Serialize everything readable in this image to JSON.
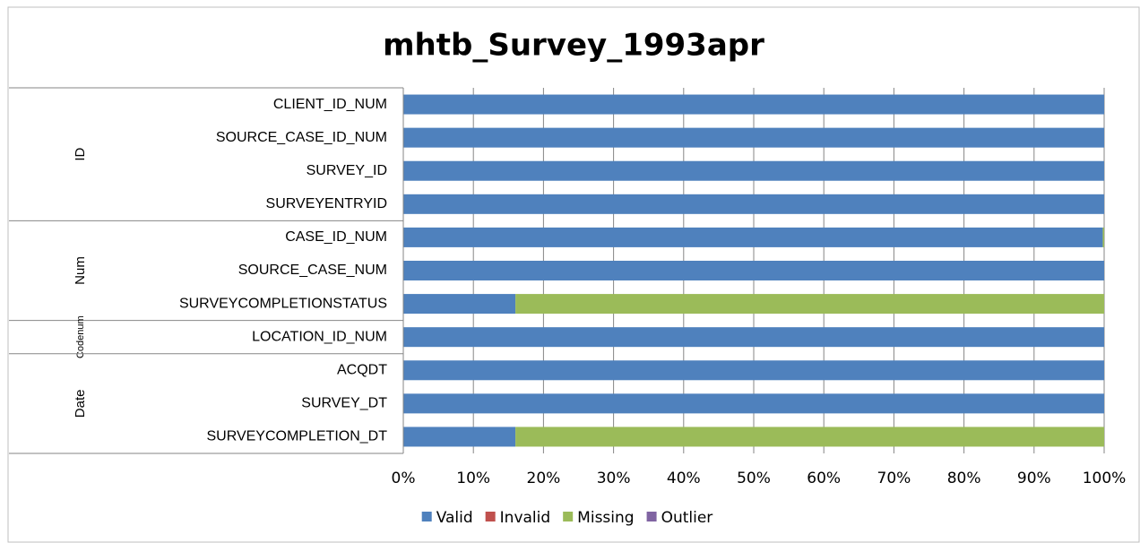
{
  "chart_data": {
    "type": "stacked_bar_horizontal",
    "title": "mhtb_Survey_1993apr",
    "groups": [
      {
        "label": "ID",
        "categories": [
          "CLIENT_ID_NUM",
          "SOURCE_CASE_ID_NUM",
          "SURVEY_ID",
          "SURVEYENTRYID"
        ]
      },
      {
        "label": "Num",
        "categories": [
          "CASE_ID_NUM",
          "SOURCE_CASE_NUM",
          "SURVEYCOMPLETIONSTATUS"
        ]
      },
      {
        "label": "Codenum",
        "categories": [
          "LOCATION_ID_NUM"
        ]
      },
      {
        "label": "Date",
        "categories": [
          "ACQDT",
          "SURVEY_DT",
          "SURVEYCOMPLETION_DT"
        ]
      }
    ],
    "series": [
      {
        "name": "Valid",
        "color": "#4f81bd",
        "values": [
          100,
          100,
          100,
          100,
          99.8,
          100,
          16,
          100,
          100,
          100,
          16
        ]
      },
      {
        "name": "Invalid",
        "color": "#c0504d",
        "values": [
          0,
          0,
          0,
          0,
          0,
          0,
          0,
          0,
          0,
          0,
          0
        ]
      },
      {
        "name": "Missing",
        "color": "#9bbb59",
        "values": [
          0,
          0,
          0,
          0,
          0.2,
          0,
          84,
          0,
          0,
          0,
          84
        ]
      },
      {
        "name": "Outlier",
        "color": "#8064a2",
        "values": [
          0,
          0,
          0,
          0,
          0,
          0,
          0,
          0,
          0,
          0,
          0
        ]
      }
    ],
    "xlim": [
      0,
      100
    ],
    "xticks": [
      {
        "value": 0,
        "label": "0%"
      },
      {
        "value": 10,
        "label": "10%"
      },
      {
        "value": 20,
        "label": "20%"
      },
      {
        "value": 30,
        "label": "30%"
      },
      {
        "value": 40,
        "label": "40%"
      },
      {
        "value": 50,
        "label": "50%"
      },
      {
        "value": 60,
        "label": "60%"
      },
      {
        "value": 70,
        "label": "70%"
      },
      {
        "value": 80,
        "label": "80%"
      },
      {
        "value": 90,
        "label": "90%"
      },
      {
        "value": 100,
        "label": "100%"
      }
    ],
    "grid": true,
    "legend": "bottom"
  }
}
